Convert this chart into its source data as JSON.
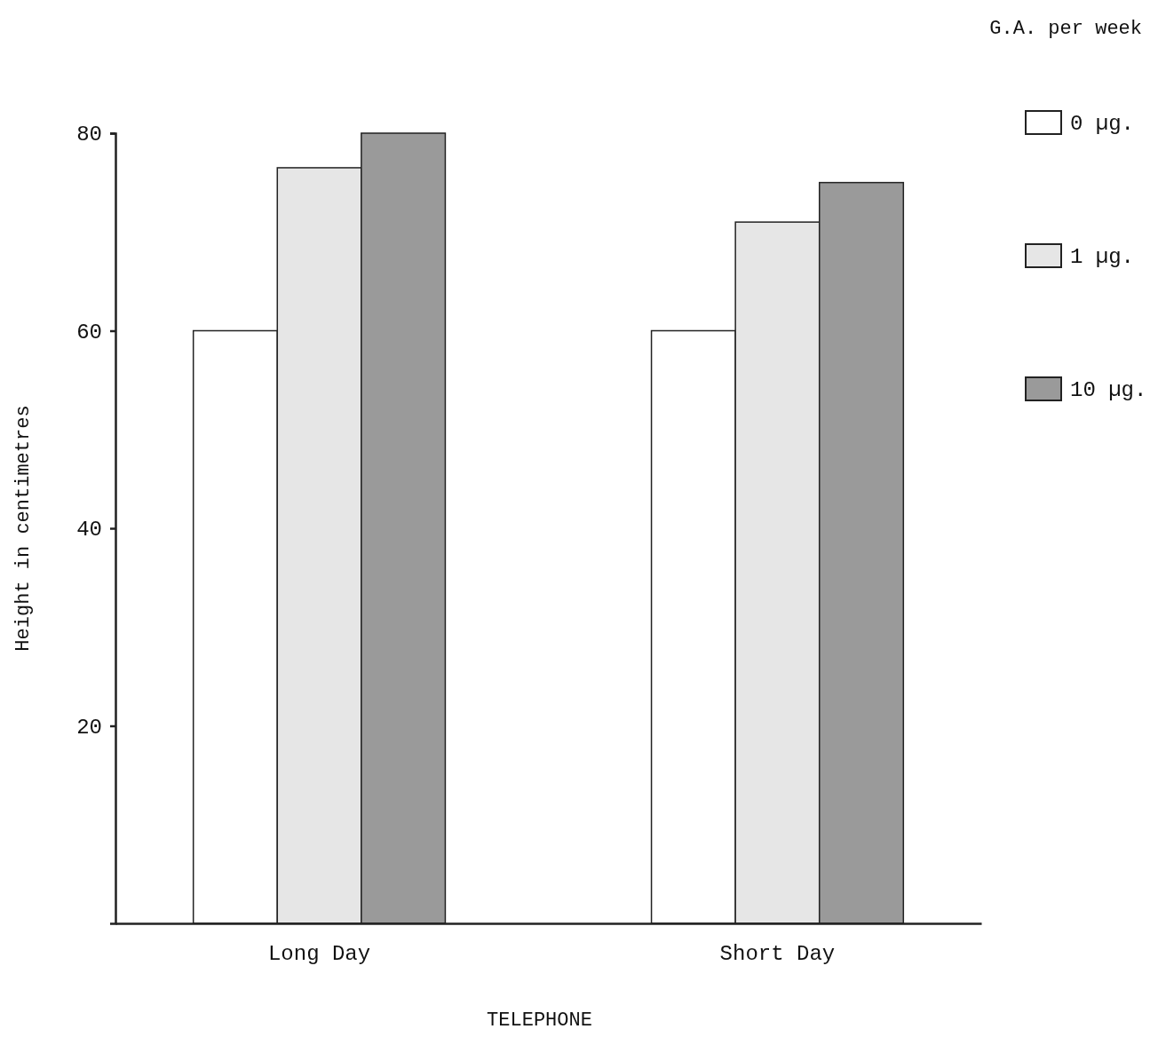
{
  "chart_data": {
    "type": "bar",
    "xlabel": "TELEPHONE",
    "ylabel": "Height in centimetres",
    "legend_title": "G.A. per week",
    "categories": [
      "Long Day",
      "Short Day"
    ],
    "series": [
      {
        "name": "0 µg.",
        "color": "#ffffff",
        "values": [
          60,
          60
        ]
      },
      {
        "name": "1 µg.",
        "color": "#e6e6e6",
        "values": [
          76.5,
          71
        ]
      },
      {
        "name": "10 µg.",
        "color": "#9a9a9a",
        "values": [
          80,
          75
        ]
      }
    ],
    "ylim": [
      0,
      80
    ],
    "yticks": [
      20,
      40,
      60,
      80
    ],
    "grid": false,
    "legend": "top right"
  }
}
